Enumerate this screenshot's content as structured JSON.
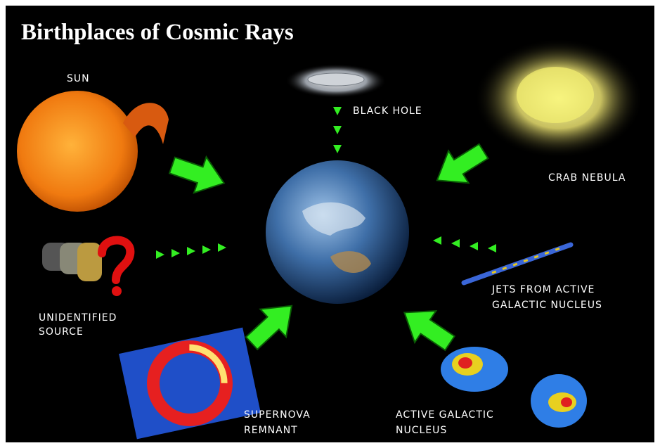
{
  "header": {
    "title": "Birthplaces of Cosmic Rays"
  },
  "sources": [
    {
      "label_lines": [
        "SUN"
      ]
    },
    {
      "label_lines": [
        "BLACK HOLE"
      ]
    },
    {
      "label_lines": [
        "CRAB NEBULA"
      ]
    },
    {
      "label_lines": [
        "UNIDENTIFIED",
        "SOURCE"
      ]
    },
    {
      "label_lines": [
        "JETS FROM ACTIVE",
        "GALACTIC NUCLEUS"
      ]
    },
    {
      "label_lines": [
        "SUPERNOVA",
        "REMNANT"
      ]
    },
    {
      "label_lines": [
        "ACTIVE GALACTIC",
        "NUCLEUS"
      ]
    }
  ]
}
